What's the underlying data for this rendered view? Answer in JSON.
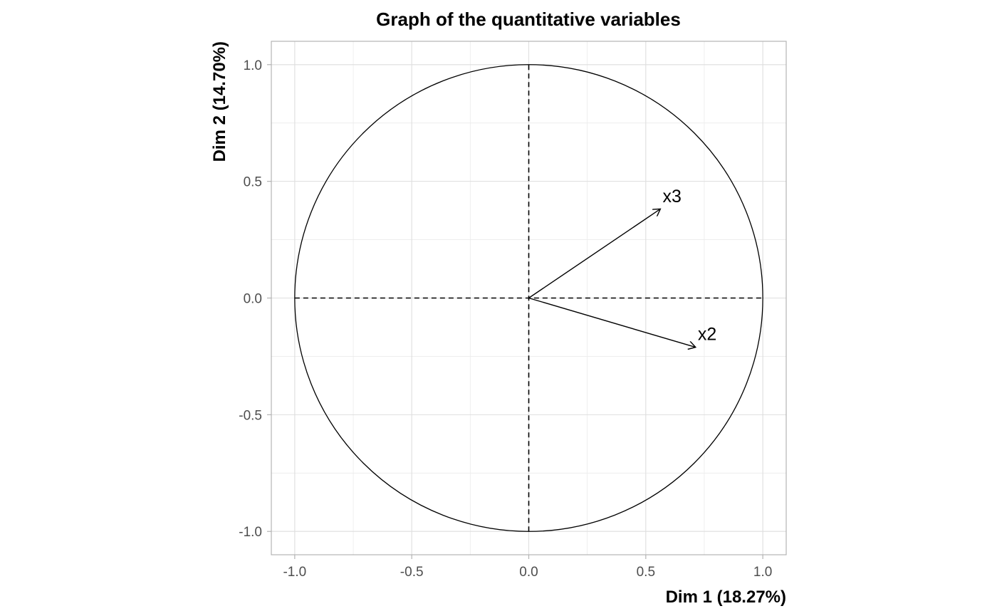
{
  "chart_data": {
    "type": "scatter",
    "title": "Graph of the quantitative variables",
    "xlabel": "Dim 1 (18.27%)",
    "ylabel": "Dim 2 (14.70%)",
    "xlim": [
      -1.1,
      1.1
    ],
    "ylim": [
      -1.1,
      1.1
    ],
    "x_ticks": [
      -1.0,
      -0.5,
      0.0,
      0.5,
      1.0
    ],
    "y_ticks": [
      -1.0,
      -0.5,
      0.0,
      0.5,
      1.0
    ],
    "x_tick_labels": [
      "-1.0",
      "-0.5",
      "0.0",
      "0.5",
      "1.0"
    ],
    "y_tick_labels": [
      "-1.0",
      "-0.5",
      "0.0",
      "0.5",
      "1.0"
    ],
    "grid": true,
    "unit_circle": true,
    "reference_lines": "dashed at x=0 and y=0",
    "arrows": [
      {
        "label": "x3",
        "x": 0.56,
        "y": 0.38
      },
      {
        "label": "x2",
        "x": 0.71,
        "y": -0.21
      }
    ],
    "color": "#000000"
  }
}
